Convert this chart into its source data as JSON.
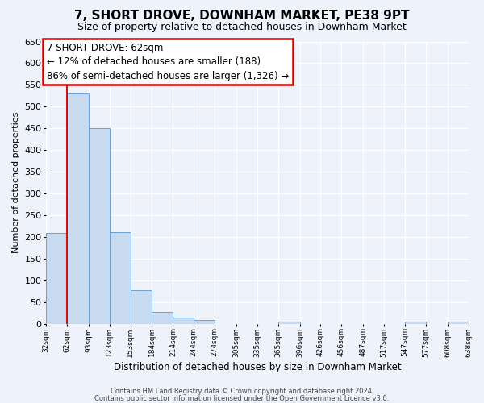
{
  "title": "7, SHORT DROVE, DOWNHAM MARKET, PE38 9PT",
  "subtitle": "Size of property relative to detached houses in Downham Market",
  "xlabel": "Distribution of detached houses by size in Downham Market",
  "ylabel": "Number of detached properties",
  "bar_color": "#c8daf0",
  "bar_edge_color": "#6aa0d0",
  "background_color": "#edf2fb",
  "grid_color": "#ffffff",
  "annotation_line1": "7 SHORT DROVE: 62sqm",
  "annotation_line2": "← 12% of detached houses are smaller (188)",
  "annotation_line3": "86% of semi-detached houses are larger (1,326) →",
  "bins": [
    32,
    62,
    93,
    123,
    153,
    184,
    214,
    244,
    274,
    305,
    335,
    365,
    396,
    426,
    456,
    487,
    517,
    547,
    577,
    608,
    638
  ],
  "values": [
    210,
    530,
    450,
    212,
    78,
    28,
    14,
    10,
    0,
    0,
    0,
    5,
    0,
    0,
    0,
    0,
    0,
    5,
    0,
    5
  ],
  "ylim": [
    0,
    650
  ],
  "yticks": [
    0,
    50,
    100,
    150,
    200,
    250,
    300,
    350,
    400,
    450,
    500,
    550,
    600,
    650
  ],
  "red_line_x": 62,
  "footer1": "Contains HM Land Registry data © Crown copyright and database right 2024.",
  "footer2": "Contains public sector information licensed under the Open Government Licence v3.0.",
  "title_fontsize": 11,
  "subtitle_fontsize": 9,
  "ylabel_fontsize": 8,
  "xlabel_fontsize": 8.5,
  "ytick_fontsize": 8,
  "xtick_fontsize": 6.5,
  "footer_fontsize": 6,
  "annot_fontsize": 8.5
}
